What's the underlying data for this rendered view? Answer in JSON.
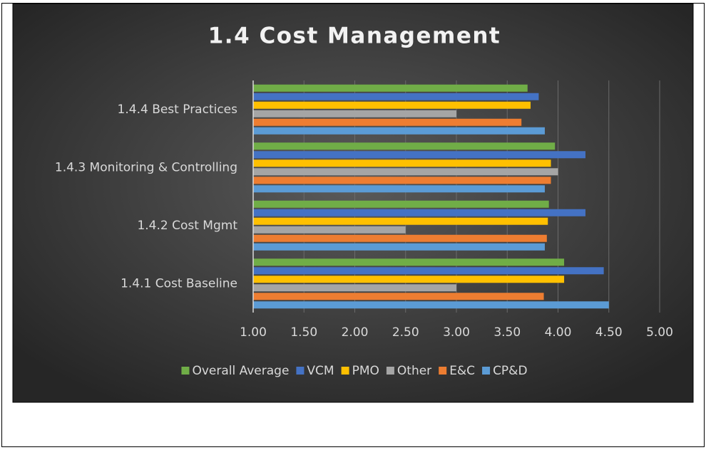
{
  "chart_data": {
    "type": "bar",
    "orientation": "horizontal",
    "title": "1.4 Cost Management",
    "categories": [
      "1.4.4 Best Practices",
      "1.4.3 Monitoring & Controlling",
      "1.4.2 Cost Mgmt",
      "1.4.1 Cost Baseline"
    ],
    "series": [
      {
        "name": "Overall Average",
        "color": "#70ad47",
        "values": [
          3.7,
          3.97,
          3.91,
          4.06
        ]
      },
      {
        "name": "VCM",
        "color": "#4472c4",
        "values": [
          3.81,
          4.27,
          4.27,
          4.45
        ]
      },
      {
        "name": "PMO",
        "color": "#ffc000",
        "values": [
          3.73,
          3.93,
          3.9,
          4.06
        ]
      },
      {
        "name": "Other",
        "color": "#a5a5a5",
        "values": [
          3.0,
          4.0,
          2.5,
          3.0
        ]
      },
      {
        "name": "E&C",
        "color": "#ed7d31",
        "values": [
          3.64,
          3.93,
          3.89,
          3.86
        ]
      },
      {
        "name": "CP&D",
        "color": "#5b9bd5",
        "values": [
          3.87,
          3.87,
          3.87,
          4.5
        ]
      }
    ],
    "xlim": [
      1,
      5
    ],
    "xticks": [
      {
        "value": 1,
        "label": "1.00"
      },
      {
        "value": 1.5,
        "label": "1.50"
      },
      {
        "value": 2,
        "label": "2.00"
      },
      {
        "value": 2.5,
        "label": "2.50"
      },
      {
        "value": 3,
        "label": "3.00"
      },
      {
        "value": 3.5,
        "label": "3.50"
      },
      {
        "value": 4,
        "label": "4.00"
      },
      {
        "value": 4.5,
        "label": "4.50"
      },
      {
        "value": 5,
        "label": "5.00"
      }
    ],
    "grid": true,
    "legend": "bottom"
  }
}
